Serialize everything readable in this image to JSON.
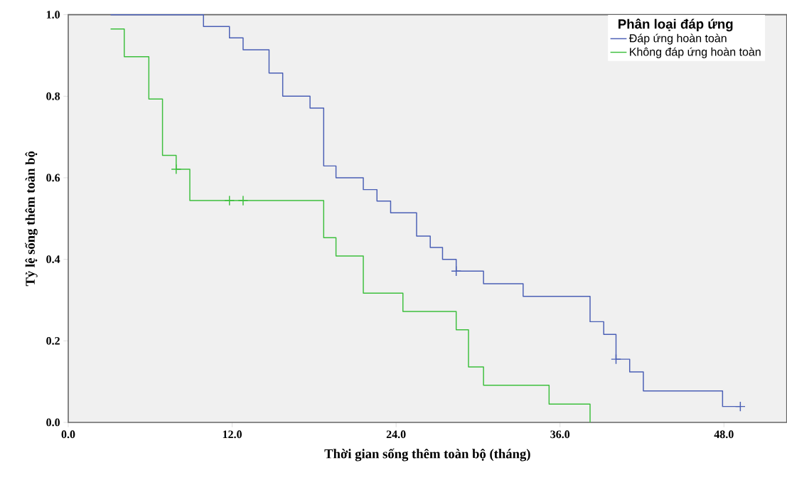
{
  "chart_data": {
    "type": "step",
    "xlabel": "Thời gian sống thêm toàn bộ (tháng)",
    "ylabel": "Tỷ lệ sống thêm toàn bộ",
    "legend_title": "Phân loại đáp ứng",
    "legend": "top right",
    "grid": false,
    "xlim": [
      0,
      52.6
    ],
    "ylim": [
      0,
      1.0
    ],
    "xticks": [
      {
        "value": 0,
        "label": "0.0"
      },
      {
        "value": 12,
        "label": "12.0"
      },
      {
        "value": 24,
        "label": "24.0"
      },
      {
        "value": 36,
        "label": "36.0"
      },
      {
        "value": 48,
        "label": "48.0"
      }
    ],
    "yticks": [
      {
        "value": 0,
        "label": "0.0"
      },
      {
        "value": 0.2,
        "label": "0.2"
      },
      {
        "value": 0.4,
        "label": "0.4"
      },
      {
        "value": 0.6,
        "label": "0.6"
      },
      {
        "value": 0.8,
        "label": "0.8"
      },
      {
        "value": 1.0,
        "label": "1.0"
      }
    ],
    "series": [
      {
        "name": "Đáp ứng hoàn toàn",
        "color": "#4a5fb5",
        "x": [
          3.1,
          9.9,
          11.8,
          12.8,
          14.7,
          15.7,
          17.7,
          18.7,
          19.6,
          21.6,
          22.6,
          23.6,
          25.5,
          26.5,
          27.4,
          28.4,
          30.4,
          33.3,
          38.2,
          39.2,
          40.1,
          41.1,
          42.1,
          47.9,
          49.2
        ],
        "values": [
          1.0,
          0.971,
          0.943,
          0.914,
          0.857,
          0.8,
          0.771,
          0.629,
          0.6,
          0.571,
          0.543,
          0.514,
          0.457,
          0.429,
          0.4,
          0.371,
          0.34,
          0.309,
          0.247,
          0.216,
          0.155,
          0.124,
          0.077,
          0.039,
          0.039
        ]
      },
      {
        "name": "Không đáp ứng hoàn toàn",
        "color": "#3dbf3d",
        "x": [
          3.1,
          4.1,
          5.9,
          6.9,
          7.9,
          8.9,
          18.7,
          19.6,
          21.6,
          24.5,
          28.4,
          29.3,
          30.4,
          35.2,
          38.2
        ],
        "values": [
          0.965,
          0.897,
          0.793,
          0.655,
          0.621,
          0.544,
          0.453,
          0.408,
          0.317,
          0.272,
          0.227,
          0.136,
          0.091,
          0.045,
          0.0
        ]
      },
      {
        "type": "scatter",
        "marker": "cross",
        "color": "#4a5fb5",
        "x": [
          28.4,
          40.1,
          49.2
        ],
        "values": [
          0.371,
          0.155,
          0.039
        ]
      },
      {
        "type": "scatter",
        "marker": "cross",
        "color": "#3dbf3d",
        "x": [
          7.9,
          11.8,
          12.8
        ],
        "values": [
          0.621,
          0.544,
          0.544
        ]
      }
    ]
  }
}
